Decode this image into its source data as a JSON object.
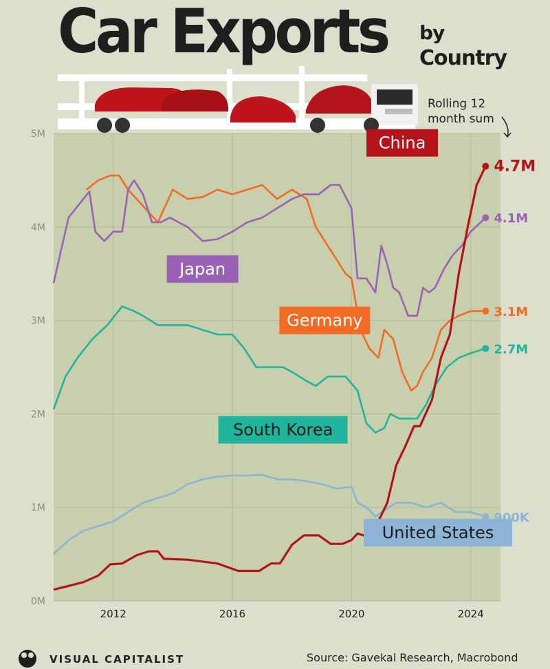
{
  "header": {
    "title_main": "Car Exports",
    "title_by": "by",
    "title_country": "Country",
    "subtitle": "Rolling 12 month sum"
  },
  "footer": {
    "logo_text": "VISUAL CAPITALIST",
    "source": "Source: Gavekal Research, Macrobond"
  },
  "colors": {
    "background": "#dcdfcc",
    "plot_background": "#c8cfac",
    "china": "#b5131b",
    "japan": "#9a62b7",
    "germany": "#f26a24",
    "south_korea": "#1fb49c",
    "united_states": "#8db3d6"
  },
  "chart_data": {
    "type": "line",
    "title": "Car Exports by Country",
    "subtitle": "Rolling 12 month sum",
    "xlim": [
      2010.0,
      2025.0
    ],
    "ylim": [
      0,
      5000000
    ],
    "x_ticks": [
      2012,
      2016,
      2020,
      2024
    ],
    "x_tick_labels": [
      "2012",
      "2016",
      "2020",
      "2024"
    ],
    "y_ticks": [
      0,
      1000000,
      2000000,
      3000000,
      4000000,
      5000000
    ],
    "y_tick_labels": [
      "0M",
      "1M",
      "2M",
      "3M",
      "4M",
      "5M"
    ],
    "grid": true,
    "series": [
      {
        "name": "China",
        "color": "#b5131b",
        "end_label": "4.7M",
        "points": [
          [
            2010.0,
            120000
          ],
          [
            2010.5,
            160000
          ],
          [
            2011.0,
            200000
          ],
          [
            2011.5,
            270000
          ],
          [
            2011.9,
            390000
          ],
          [
            2012.3,
            400000
          ],
          [
            2012.8,
            490000
          ],
          [
            2013.2,
            530000
          ],
          [
            2013.5,
            530000
          ],
          [
            2013.7,
            450000
          ],
          [
            2014.5,
            440000
          ],
          [
            2015.5,
            400000
          ],
          [
            2016.2,
            320000
          ],
          [
            2016.9,
            320000
          ],
          [
            2017.3,
            400000
          ],
          [
            2017.6,
            400000
          ],
          [
            2018.0,
            600000
          ],
          [
            2018.4,
            700000
          ],
          [
            2018.9,
            700000
          ],
          [
            2019.3,
            610000
          ],
          [
            2019.7,
            610000
          ],
          [
            2020.0,
            650000
          ],
          [
            2020.2,
            720000
          ],
          [
            2020.4,
            700000
          ],
          [
            2020.6,
            700000
          ],
          [
            2020.9,
            850000
          ],
          [
            2021.2,
            1050000
          ],
          [
            2021.5,
            1450000
          ],
          [
            2021.8,
            1650000
          ],
          [
            2022.1,
            1870000
          ],
          [
            2022.3,
            1870000
          ],
          [
            2022.7,
            2150000
          ],
          [
            2023.0,
            2600000
          ],
          [
            2023.3,
            2850000
          ],
          [
            2023.6,
            3500000
          ],
          [
            2023.9,
            4000000
          ],
          [
            2024.2,
            4450000
          ],
          [
            2024.5,
            4650000
          ]
        ]
      },
      {
        "name": "Japan",
        "color": "#9a62b7",
        "end_label": "4.1M",
        "points": [
          [
            2010.0,
            3400000
          ],
          [
            2010.5,
            4100000
          ],
          [
            2011.0,
            4300000
          ],
          [
            2011.2,
            4380000
          ],
          [
            2011.4,
            3950000
          ],
          [
            2011.7,
            3850000
          ],
          [
            2012.0,
            3950000
          ],
          [
            2012.3,
            3950000
          ],
          [
            2012.5,
            4400000
          ],
          [
            2012.7,
            4500000
          ],
          [
            2013.0,
            4350000
          ],
          [
            2013.3,
            4050000
          ],
          [
            2013.6,
            4050000
          ],
          [
            2013.9,
            4100000
          ],
          [
            2014.5,
            4000000
          ],
          [
            2015.0,
            3850000
          ],
          [
            2015.5,
            3870000
          ],
          [
            2016.0,
            3950000
          ],
          [
            2016.5,
            4050000
          ],
          [
            2017.0,
            4100000
          ],
          [
            2017.5,
            4200000
          ],
          [
            2018.0,
            4300000
          ],
          [
            2018.4,
            4350000
          ],
          [
            2018.9,
            4350000
          ],
          [
            2019.3,
            4450000
          ],
          [
            2019.6,
            4450000
          ],
          [
            2020.0,
            4200000
          ],
          [
            2020.2,
            3450000
          ],
          [
            2020.5,
            3450000
          ],
          [
            2020.8,
            3300000
          ],
          [
            2021.0,
            3800000
          ],
          [
            2021.2,
            3600000
          ],
          [
            2021.4,
            3350000
          ],
          [
            2021.6,
            3300000
          ],
          [
            2021.9,
            3050000
          ],
          [
            2022.2,
            3050000
          ],
          [
            2022.4,
            3350000
          ],
          [
            2022.6,
            3300000
          ],
          [
            2022.8,
            3350000
          ],
          [
            2023.1,
            3550000
          ],
          [
            2023.4,
            3700000
          ],
          [
            2023.7,
            3800000
          ],
          [
            2024.0,
            3950000
          ],
          [
            2024.5,
            4100000
          ]
        ]
      },
      {
        "name": "Germany",
        "color": "#f26a24",
        "end_label": "3.1M",
        "points": [
          [
            2011.1,
            4400000
          ],
          [
            2011.5,
            4500000
          ],
          [
            2011.9,
            4550000
          ],
          [
            2012.2,
            4550000
          ],
          [
            2012.5,
            4400000
          ],
          [
            2013.5,
            4050000
          ],
          [
            2014.0,
            4400000
          ],
          [
            2014.5,
            4300000
          ],
          [
            2015.0,
            4320000
          ],
          [
            2015.5,
            4400000
          ],
          [
            2016.0,
            4350000
          ],
          [
            2016.5,
            4400000
          ],
          [
            2017.0,
            4450000
          ],
          [
            2017.5,
            4300000
          ],
          [
            2018.0,
            4400000
          ],
          [
            2018.5,
            4300000
          ],
          [
            2018.8,
            4000000
          ],
          [
            2019.2,
            3800000
          ],
          [
            2019.5,
            3650000
          ],
          [
            2019.8,
            3500000
          ],
          [
            2020.0,
            3450000
          ],
          [
            2020.3,
            2900000
          ],
          [
            2020.6,
            2700000
          ],
          [
            2020.9,
            2600000
          ],
          [
            2021.1,
            2900000
          ],
          [
            2021.4,
            2800000
          ],
          [
            2021.7,
            2450000
          ],
          [
            2022.0,
            2250000
          ],
          [
            2022.2,
            2300000
          ],
          [
            2022.4,
            2450000
          ],
          [
            2022.7,
            2600000
          ],
          [
            2023.0,
            2900000
          ],
          [
            2023.3,
            3000000
          ],
          [
            2023.6,
            3050000
          ],
          [
            2024.0,
            3100000
          ],
          [
            2024.5,
            3100000
          ]
        ]
      },
      {
        "name": "South Korea",
        "color": "#1fb49c",
        "end_label": "2.7M",
        "points": [
          [
            2010.0,
            2050000
          ],
          [
            2010.4,
            2400000
          ],
          [
            2010.8,
            2600000
          ],
          [
            2011.3,
            2800000
          ],
          [
            2011.8,
            2950000
          ],
          [
            2012.3,
            3150000
          ],
          [
            2012.7,
            3100000
          ],
          [
            2013.0,
            3050000
          ],
          [
            2013.5,
            2950000
          ],
          [
            2014.0,
            2950000
          ],
          [
            2014.5,
            2950000
          ],
          [
            2015.0,
            2900000
          ],
          [
            2015.5,
            2850000
          ],
          [
            2016.0,
            2850000
          ],
          [
            2016.4,
            2700000
          ],
          [
            2016.8,
            2500000
          ],
          [
            2017.3,
            2500000
          ],
          [
            2017.7,
            2500000
          ],
          [
            2018.0,
            2450000
          ],
          [
            2018.5,
            2350000
          ],
          [
            2018.8,
            2300000
          ],
          [
            2019.2,
            2400000
          ],
          [
            2019.8,
            2400000
          ],
          [
            2020.2,
            2250000
          ],
          [
            2020.5,
            1900000
          ],
          [
            2020.8,
            1800000
          ],
          [
            2021.1,
            1850000
          ],
          [
            2021.3,
            2000000
          ],
          [
            2021.6,
            1950000
          ],
          [
            2021.9,
            1950000
          ],
          [
            2022.2,
            1950000
          ],
          [
            2022.5,
            2100000
          ],
          [
            2022.8,
            2300000
          ],
          [
            2023.2,
            2500000
          ],
          [
            2023.6,
            2600000
          ],
          [
            2024.0,
            2650000
          ],
          [
            2024.5,
            2700000
          ]
        ]
      },
      {
        "name": "United States",
        "color": "#8db3d6",
        "end_label": "900K",
        "points": [
          [
            2010.0,
            500000
          ],
          [
            2010.5,
            650000
          ],
          [
            2011.0,
            750000
          ],
          [
            2011.5,
            800000
          ],
          [
            2012.0,
            850000
          ],
          [
            2012.5,
            950000
          ],
          [
            2013.0,
            1050000
          ],
          [
            2013.5,
            1100000
          ],
          [
            2014.0,
            1150000
          ],
          [
            2014.5,
            1250000
          ],
          [
            2015.0,
            1300000
          ],
          [
            2015.5,
            1330000
          ],
          [
            2016.0,
            1340000
          ],
          [
            2016.5,
            1340000
          ],
          [
            2017.0,
            1350000
          ],
          [
            2017.5,
            1300000
          ],
          [
            2018.0,
            1300000
          ],
          [
            2018.5,
            1280000
          ],
          [
            2019.0,
            1250000
          ],
          [
            2019.5,
            1200000
          ],
          [
            2020.0,
            1220000
          ],
          [
            2020.2,
            1050000
          ],
          [
            2020.5,
            1000000
          ],
          [
            2020.8,
            900000
          ],
          [
            2021.0,
            950000
          ],
          [
            2021.5,
            1050000
          ],
          [
            2022.0,
            1050000
          ],
          [
            2022.5,
            1000000
          ],
          [
            2023.0,
            1050000
          ],
          [
            2023.5,
            950000
          ],
          [
            2024.0,
            950000
          ],
          [
            2024.5,
            900000
          ]
        ]
      }
    ],
    "labels": [
      {
        "text": "China",
        "series": "China",
        "x": 2021.7,
        "y": 4900000,
        "text_color": "#ffffff",
        "bg": "#b5131b"
      },
      {
        "text": "Japan",
        "series": "Japan",
        "x": 2015.0,
        "y": 3550000,
        "text_color": "#ffffff",
        "bg": "#9a62b7"
      },
      {
        "text": "Germany",
        "series": "Germany",
        "x": 2019.1,
        "y": 3000000,
        "text_color": "#ffffff",
        "bg": "#f26a24"
      },
      {
        "text": "South Korea",
        "series": "South Korea",
        "x": 2017.7,
        "y": 1830000,
        "text_color": "#1e1e1e",
        "bg": "#1fb49c"
      },
      {
        "text": "United States",
        "series": "United States",
        "x": 2022.9,
        "y": 730000,
        "text_color": "#1e1e1e",
        "bg": "#8db3d6"
      }
    ]
  }
}
